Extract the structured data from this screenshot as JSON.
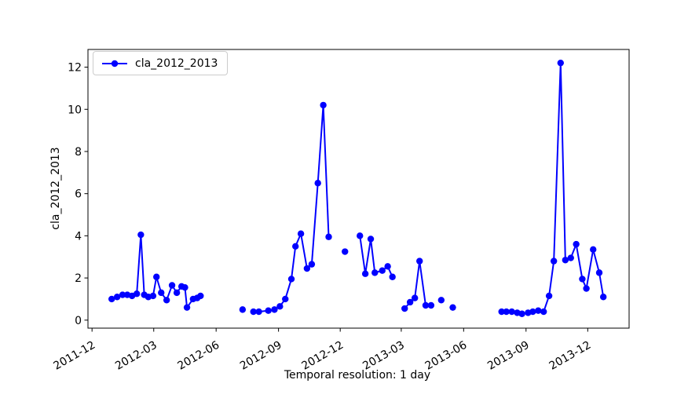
{
  "figure": {
    "background": "#ffffff"
  },
  "chart_data": {
    "type": "line",
    "title": "",
    "xlabel": "Temporal resolution: 1 day",
    "ylabel": "cla_2012_2013",
    "legend": [
      "cla_2012_2013"
    ],
    "legend_position": "upper-left",
    "line_color": "#0000ff",
    "marker": "circle",
    "grid": false,
    "xlim": [
      "2011-11-25",
      "2014-01-31"
    ],
    "ylim": [
      -0.38,
      12.84
    ],
    "y_ticks": [
      0,
      2,
      4,
      6,
      8,
      10,
      12
    ],
    "x_ticks": [
      {
        "label": "2011-12",
        "date": "2011-12-01"
      },
      {
        "label": "2012-03",
        "date": "2012-03-01"
      },
      {
        "label": "2012-06",
        "date": "2012-06-01"
      },
      {
        "label": "2012-09",
        "date": "2012-09-01"
      },
      {
        "label": "2012-12",
        "date": "2012-12-01"
      },
      {
        "label": "2013-03",
        "date": "2013-03-01"
      },
      {
        "label": "2013-06",
        "date": "2013-06-01"
      },
      {
        "label": "2013-09",
        "date": "2013-09-01"
      },
      {
        "label": "2013-12",
        "date": "2013-12-01"
      }
    ],
    "series": [
      {
        "name": "cla_2012_2013",
        "segments": [
          [
            [
              "2011-12-30",
              1.0
            ],
            [
              "2012-01-07",
              1.1
            ],
            [
              "2012-01-15",
              1.2
            ],
            [
              "2012-01-22",
              1.2
            ],
            [
              "2012-01-29",
              1.15
            ],
            [
              "2012-02-05",
              1.25
            ],
            [
              "2012-02-11",
              4.05
            ],
            [
              "2012-02-16",
              1.2
            ],
            [
              "2012-02-22",
              1.1
            ],
            [
              "2012-02-29",
              1.15
            ],
            [
              "2012-03-05",
              2.05
            ],
            [
              "2012-03-12",
              1.3
            ],
            [
              "2012-03-20",
              0.95
            ],
            [
              "2012-03-28",
              1.65
            ],
            [
              "2012-04-04",
              1.3
            ],
            [
              "2012-04-11",
              1.6
            ],
            [
              "2012-04-16",
              1.55
            ],
            [
              "2012-04-19",
              0.6
            ],
            [
              "2012-04-28",
              1.0
            ],
            [
              "2012-05-04",
              1.05
            ],
            [
              "2012-05-09",
              1.15
            ]
          ],
          [
            [
              "2012-07-10",
              0.5
            ]
          ],
          [
            [
              "2012-07-26",
              0.4
            ],
            [
              "2012-08-03",
              0.4
            ],
            [
              "2012-08-17",
              0.45
            ],
            [
              "2012-08-26",
              0.5
            ],
            [
              "2012-09-03",
              0.65
            ],
            [
              "2012-09-11",
              1.0
            ],
            [
              "2012-09-20",
              1.95
            ],
            [
              "2012-09-26",
              3.5
            ],
            [
              "2012-10-04",
              4.1
            ],
            [
              "2012-10-13",
              2.45
            ],
            [
              "2012-10-20",
              2.65
            ],
            [
              "2012-10-29",
              6.5
            ],
            [
              "2012-11-06",
              10.2
            ],
            [
              "2012-11-14",
              3.95
            ]
          ],
          [
            [
              "2012-12-08",
              3.25
            ]
          ],
          [
            [
              "2012-12-30",
              4.0
            ],
            [
              "2013-01-07",
              2.2
            ],
            [
              "2013-01-15",
              3.85
            ],
            [
              "2013-01-21",
              2.25
            ],
            [
              "2013-02-01",
              2.35
            ],
            [
              "2013-02-09",
              2.55
            ],
            [
              "2013-02-16",
              2.05
            ]
          ],
          [
            [
              "2013-03-06",
              0.55
            ],
            [
              "2013-03-14",
              0.85
            ],
            [
              "2013-03-21",
              1.05
            ],
            [
              "2013-03-28",
              2.8
            ],
            [
              "2013-04-06",
              0.7
            ],
            [
              "2013-04-14",
              0.7
            ]
          ],
          [
            [
              "2013-04-29",
              0.95
            ]
          ],
          [
            [
              "2013-05-16",
              0.6
            ]
          ],
          [
            [
              "2013-07-27",
              0.4
            ],
            [
              "2013-08-03",
              0.4
            ],
            [
              "2013-08-11",
              0.4
            ],
            [
              "2013-08-19",
              0.35
            ],
            [
              "2013-08-26",
              0.3
            ],
            [
              "2013-09-04",
              0.35
            ],
            [
              "2013-09-11",
              0.4
            ],
            [
              "2013-09-19",
              0.45
            ],
            [
              "2013-09-27",
              0.4
            ],
            [
              "2013-10-05",
              1.15
            ],
            [
              "2013-10-12",
              2.8
            ],
            [
              "2013-10-22",
              12.2
            ],
            [
              "2013-10-29",
              2.85
            ],
            [
              "2013-11-06",
              2.95
            ],
            [
              "2013-11-14",
              3.6
            ],
            [
              "2013-11-23",
              1.95
            ],
            [
              "2013-11-29",
              1.5
            ],
            [
              "2013-12-09",
              3.35
            ],
            [
              "2013-12-18",
              2.25
            ],
            [
              "2013-12-24",
              1.1
            ]
          ]
        ]
      }
    ]
  }
}
